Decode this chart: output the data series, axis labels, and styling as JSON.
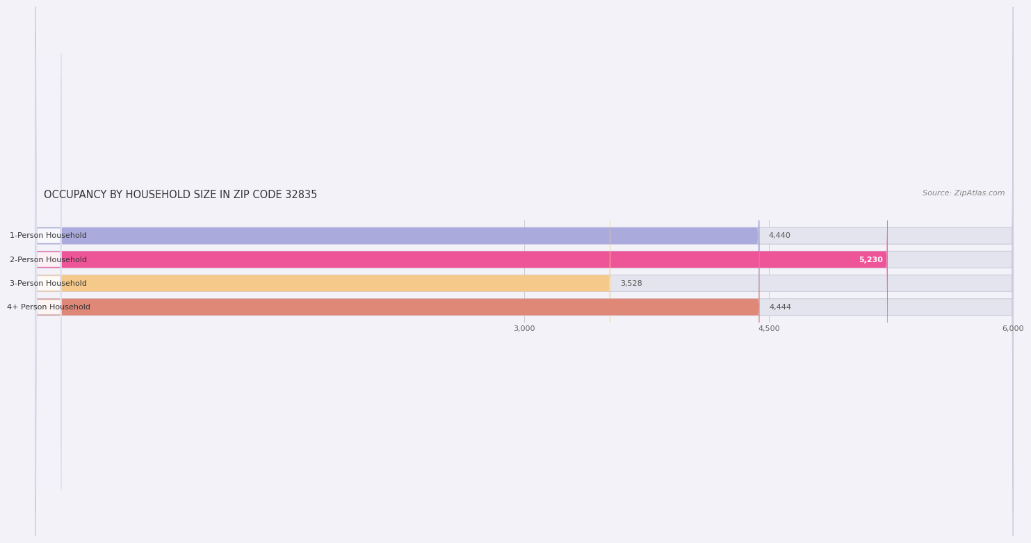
{
  "title": "OCCUPANCY BY HOUSEHOLD SIZE IN ZIP CODE 32835",
  "source": "Source: ZipAtlas.com",
  "categories": [
    "1-Person Household",
    "2-Person Household",
    "3-Person Household",
    "4+ Person Household"
  ],
  "values": [
    4440,
    5230,
    3528,
    4444
  ],
  "bar_colors": [
    "#aaaadd",
    "#ee5599",
    "#f5c98a",
    "#e08878"
  ],
  "bar_bg_color": "#e4e4ee",
  "xlim": [
    0,
    6000
  ],
  "xticks": [
    3000,
    4500,
    6000
  ],
  "xtick_labels": [
    "3,000",
    "4,500",
    "6,000"
  ],
  "background_color": "#f2f2f8",
  "title_fontsize": 10.5,
  "source_fontsize": 8,
  "label_fontsize": 8,
  "value_fontsize": 8,
  "tick_fontsize": 8,
  "bar_height": 0.7,
  "bar_gap": 0.3
}
